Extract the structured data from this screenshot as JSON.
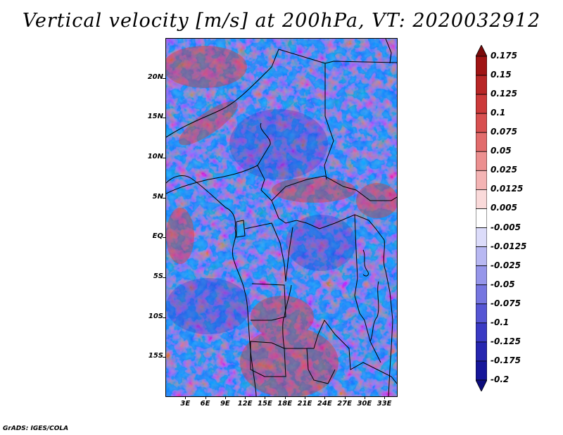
{
  "title": "Vertical velocity [m/s] at 200hPa, VT: 2020032912",
  "credit": "GrADS: IGES/COLA",
  "map": {
    "lat_labels": [
      "20N",
      "15N",
      "10N",
      "5N",
      "EQ",
      "5S",
      "10S",
      "15S"
    ],
    "lat_values": [
      20,
      15,
      10,
      5,
      0,
      -5,
      -10,
      -15
    ],
    "lon_labels": [
      "3E",
      "6E",
      "9E",
      "12E",
      "15E",
      "18E",
      "21E",
      "24E",
      "27E",
      "30E",
      "33E"
    ],
    "lon_values": [
      3,
      6,
      9,
      12,
      15,
      18,
      21,
      24,
      27,
      30,
      33
    ],
    "lat_range": [
      -20,
      25
    ],
    "lon_range": [
      0,
      35
    ]
  },
  "colorbar": {
    "labels": [
      "0.175",
      "0.15",
      "0.125",
      "0.1",
      "0.075",
      "0.05",
      "0.025",
      "0.0125",
      "0.005",
      "-0.005",
      "-0.0125",
      "-0.025",
      "-0.05",
      "-0.075",
      "-0.1",
      "-0.125",
      "-0.175",
      "-0.2"
    ],
    "colors": [
      "#7a0a0a",
      "#a01414",
      "#b82626",
      "#cc3a3a",
      "#d85050",
      "#e26c6c",
      "#ec9090",
      "#f4b4b4",
      "#fadada",
      "#ffffff",
      "#dcdcfa",
      "#b8b8f2",
      "#9696ea",
      "#7676e0",
      "#5656d4",
      "#3a3ac4",
      "#2626b0",
      "#16169a",
      "#0c0c7c"
    ]
  }
}
